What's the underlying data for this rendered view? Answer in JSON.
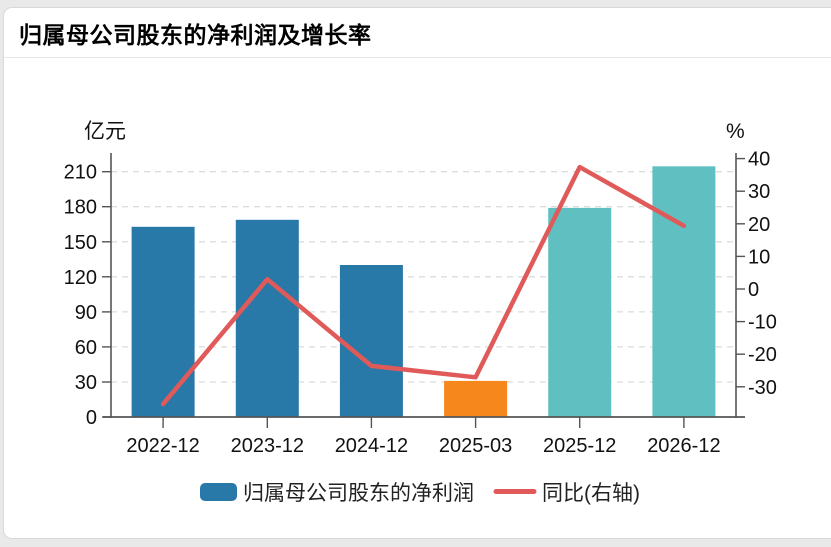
{
  "header": {
    "title": "归属母公司股东的净利润及增长率"
  },
  "chart_data": {
    "type": "bar+line",
    "categories": [
      "2022-12",
      "2023-12",
      "2024-12",
      "2025-03",
      "2025-12",
      "2026-12"
    ],
    "series": [
      {
        "name": "归属母公司股东的净利润",
        "type": "bar",
        "axis": "left",
        "unit": "亿元",
        "values": [
          162.8,
          168.8,
          130.1,
          30.9,
          179.0,
          214.6
        ],
        "bar_colors": [
          "#2878a8",
          "#2878a8",
          "#2878a8",
          "#f5871d",
          "#60c0c1",
          "#60c0c1"
        ]
      },
      {
        "name": "同比(右轴)",
        "type": "line",
        "axis": "right",
        "unit": "%",
        "values": [
          -35.3,
          3.0,
          -23.6,
          -27.1,
          37.4,
          19.4
        ],
        "color": "#e05a5a"
      }
    ],
    "left_axis": {
      "unit": "亿元",
      "ticks": [
        210,
        180,
        150,
        120,
        90,
        60,
        30,
        0
      ],
      "min": 0,
      "max": 225
    },
    "right_axis": {
      "unit": "%",
      "ticks": [
        40,
        30,
        20,
        10,
        0,
        -10,
        -20,
        -30
      ],
      "min": -39,
      "max": 41
    },
    "legend": [
      {
        "label": "归属母公司股东的净利润",
        "type": "bar",
        "color": "#2878a8"
      },
      {
        "label": "同比(右轴)",
        "type": "line",
        "color": "#e05a5a"
      }
    ],
    "grid": "horizontal-dashed"
  }
}
